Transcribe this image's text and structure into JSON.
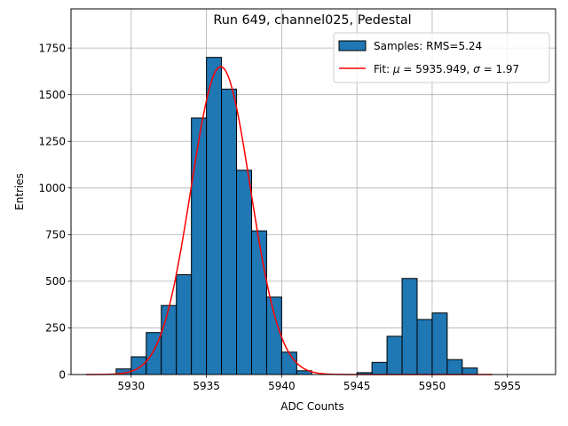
{
  "chart_data": {
    "type": "bar",
    "title": "Run 649, channel025, Pedestal",
    "xlabel": "ADC Counts",
    "ylabel": "Entries",
    "xlim": [
      5926,
      5958.2
    ],
    "ylim": [
      0,
      1960
    ],
    "xticks": [
      5930,
      5935,
      5940,
      5945,
      5950,
      5955
    ],
    "yticks": [
      0,
      250,
      500,
      750,
      1000,
      1250,
      1500,
      1750
    ],
    "grid": true,
    "legend_position": "top-right",
    "bin_width": 1,
    "bins": [
      {
        "x0": 5929,
        "count": 30
      },
      {
        "x0": 5930,
        "count": 95
      },
      {
        "x0": 5931,
        "count": 225
      },
      {
        "x0": 5932,
        "count": 370
      },
      {
        "x0": 5933,
        "count": 535
      },
      {
        "x0": 5934,
        "count": 1375
      },
      {
        "x0": 5935,
        "count": 1700
      },
      {
        "x0": 5936,
        "count": 1530
      },
      {
        "x0": 5937,
        "count": 1095
      },
      {
        "x0": 5938,
        "count": 770
      },
      {
        "x0": 5939,
        "count": 415
      },
      {
        "x0": 5940,
        "count": 120
      },
      {
        "x0": 5941,
        "count": 20
      },
      {
        "x0": 5945,
        "count": 10
      },
      {
        "x0": 5946,
        "count": 65
      },
      {
        "x0": 5947,
        "count": 205
      },
      {
        "x0": 5948,
        "count": 515
      },
      {
        "x0": 5949,
        "count": 295
      },
      {
        "x0": 5950,
        "count": 330
      },
      {
        "x0": 5951,
        "count": 80
      },
      {
        "x0": 5952,
        "count": 35
      }
    ],
    "fit": {
      "mu": 5935.949,
      "sigma": 1.97,
      "amplitude": 1650,
      "x_range": [
        5927,
        5954
      ],
      "color": "#ff0000"
    },
    "bar_color": "#1f77b4",
    "bar_edge_color": "#000000",
    "legend": [
      {
        "label": "Samples: RMS=5.24",
        "kind": "patch"
      },
      {
        "label_prefix": "Fit: ",
        "label_mu": "μ",
        "label_mid": " = 5935.949, ",
        "label_sigma": "σ",
        "label_suffix": " = 1.97",
        "kind": "line"
      }
    ]
  }
}
